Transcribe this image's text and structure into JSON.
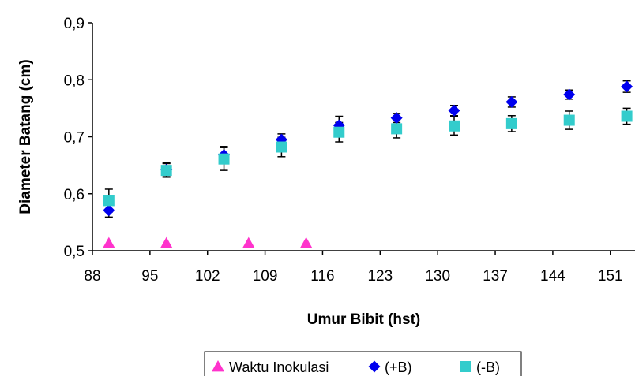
{
  "chart_data": {
    "type": "scatter",
    "xlabel": "Umur Bibit (hst)",
    "ylabel": "Diameter Batang (cm)",
    "xlim": [
      88,
      154
    ],
    "ylim": [
      0.5,
      0.9
    ],
    "x_ticks": [
      "88",
      "95",
      "102",
      "109",
      "116",
      "123",
      "130",
      "137",
      "144",
      "151"
    ],
    "y_ticks": [
      "0,5",
      "0,6",
      "0,7",
      "0,8",
      "0,9"
    ],
    "grid": false,
    "legend_position": "bottom",
    "series": [
      {
        "name": "Waktu Inokulasi",
        "marker": "triangle",
        "color": "#ff33cc",
        "x": [
          90,
          97,
          107,
          114
        ],
        "y": [
          0.513,
          0.513,
          0.513,
          0.513
        ]
      },
      {
        "name": "(+B)",
        "marker": "diamond",
        "color": "#0000ee",
        "x": [
          90,
          97,
          104,
          111,
          118,
          125,
          132,
          139,
          146,
          153
        ],
        "y": [
          0.571,
          0.642,
          0.668,
          0.695,
          0.72,
          0.733,
          0.746,
          0.761,
          0.774,
          0.788
        ],
        "error": [
          0.012,
          0.012,
          0.015,
          0.01,
          0.016,
          0.008,
          0.009,
          0.009,
          0.008,
          0.01
        ]
      },
      {
        "name": "(-B)",
        "marker": "square",
        "color": "#33cccc",
        "x": [
          90,
          97,
          104,
          111,
          118,
          125,
          132,
          139,
          146,
          153
        ],
        "y": [
          0.588,
          0.641,
          0.661,
          0.682,
          0.708,
          0.714,
          0.719,
          0.723,
          0.729,
          0.736
        ],
        "error": [
          0.02,
          0.012,
          0.02,
          0.017,
          0.017,
          0.016,
          0.016,
          0.014,
          0.016,
          0.014
        ]
      }
    ]
  }
}
